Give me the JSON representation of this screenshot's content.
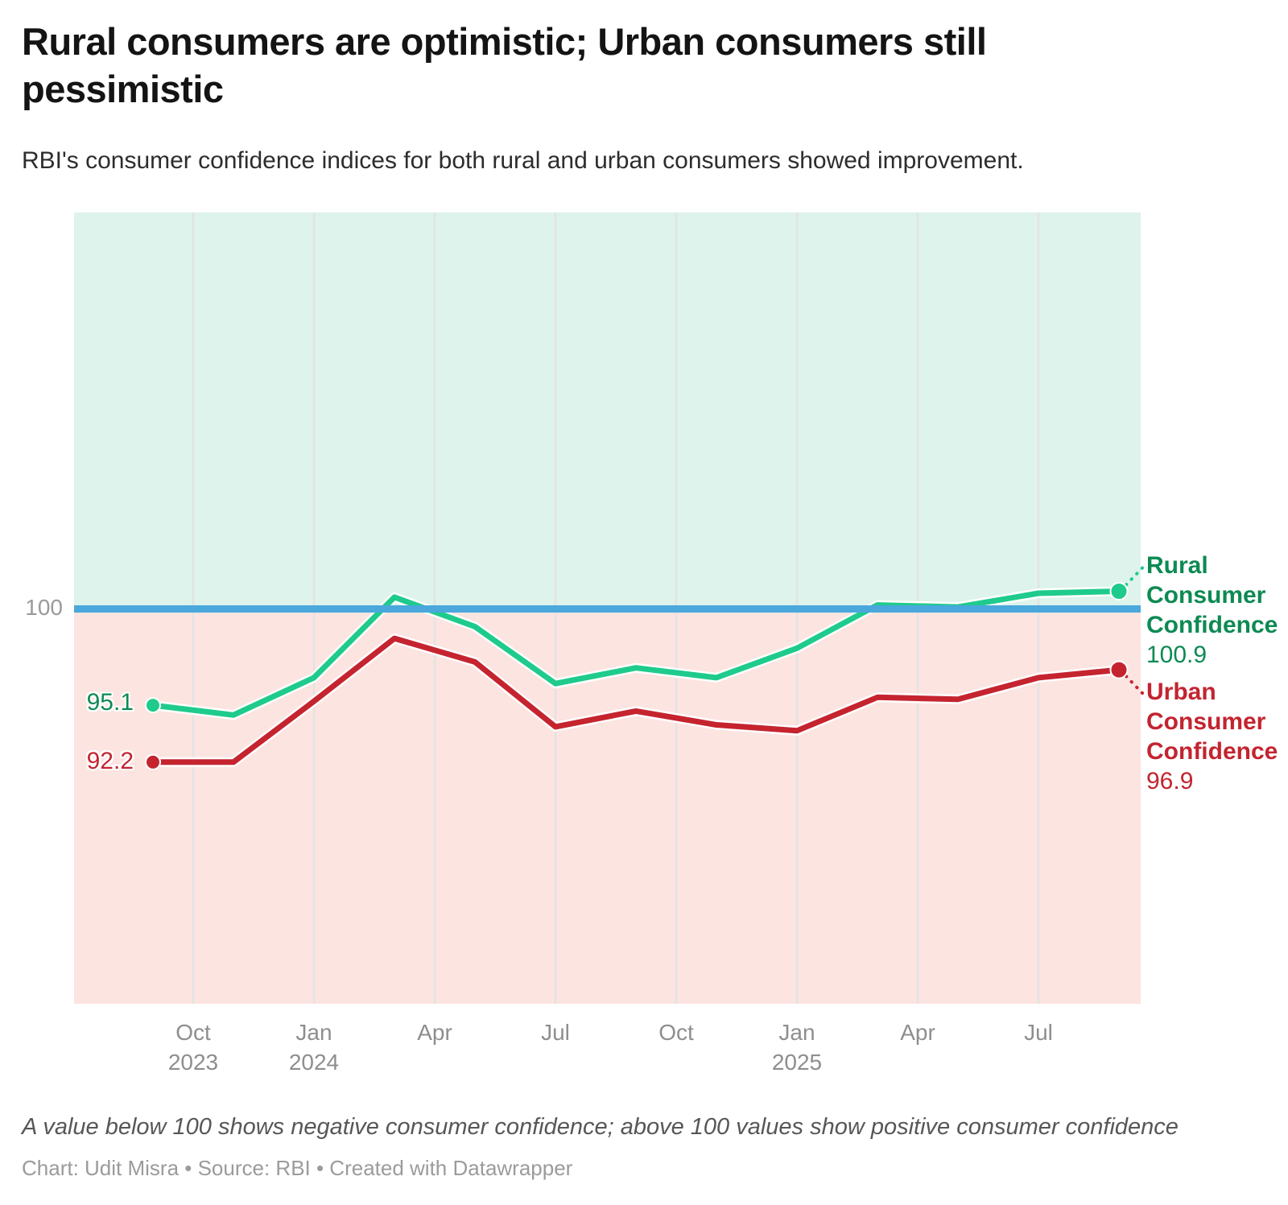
{
  "header": {
    "title": "Rural consumers are optimistic; Urban consumers still pessimistic",
    "subtitle": "RBI's consumer confidence indices for both rural and urban consumers showed improvement."
  },
  "chart_data": {
    "type": "line",
    "x": [
      "Sep 2023",
      "Nov 2023",
      "Jan 2024",
      "Mar 2024",
      "May 2024",
      "Jul 2024",
      "Sep 2024",
      "Nov 2024",
      "Jan 2025",
      "Mar 2025",
      "May 2025",
      "Jul 2025",
      "Sep 2025"
    ],
    "series": [
      {
        "id": "rural",
        "name": "Rural Consumer Confidence",
        "legend_lines": [
          "Rural",
          "Consumer",
          "Confidence"
        ],
        "color": "#1fcb8c",
        "label_color": "#0d8a53",
        "values": [
          95.1,
          94.6,
          96.5,
          100.6,
          99.1,
          96.2,
          97.0,
          96.5,
          98.0,
          100.2,
          100.1,
          100.8,
          100.9
        ],
        "start_label": "95.1",
        "end_label": "100.9",
        "label_dir": -1
      },
      {
        "id": "urban",
        "name": "Urban Consumer Confidence",
        "legend_lines": [
          "Urban",
          "Consumer",
          "Confidence"
        ],
        "color": "#c5242f",
        "label_color": "#c32430",
        "values": [
          92.2,
          92.2,
          95.3,
          98.5,
          97.3,
          94.0,
          94.8,
          94.1,
          93.8,
          95.5,
          95.4,
          96.5,
          96.9
        ],
        "start_label": "92.2",
        "end_label": "96.9",
        "label_dir": 1
      }
    ],
    "baseline": {
      "value": 100,
      "label": "100",
      "color": "#4aa8dc"
    },
    "ylim": [
      80,
      120
    ],
    "grid": "vertical-quarterly",
    "legend_position": "right",
    "x_ticks": [
      {
        "month": "Oct",
        "year": "2023",
        "pos": 0.5
      },
      {
        "month": "Jan",
        "year": "2024",
        "pos": 2
      },
      {
        "month": "Apr",
        "year": "",
        "pos": 3.5
      },
      {
        "month": "Jul",
        "year": "",
        "pos": 5
      },
      {
        "month": "Oct",
        "year": "",
        "pos": 6.5
      },
      {
        "month": "Jan",
        "year": "2025",
        "pos": 8
      },
      {
        "month": "Apr",
        "year": "",
        "pos": 9.5
      },
      {
        "month": "Jul",
        "year": "",
        "pos": 11
      }
    ],
    "bands": {
      "above_color": "#ddf3ec",
      "below_color": "#fce4e1",
      "gridline_color": "#e3e3e3"
    }
  },
  "footer": {
    "note": "A value below 100 shows negative consumer confidence; above 100 values show positive consumer confidence",
    "byline": "Chart: Udit Misra • Source: RBI • Created with Datawrapper"
  }
}
